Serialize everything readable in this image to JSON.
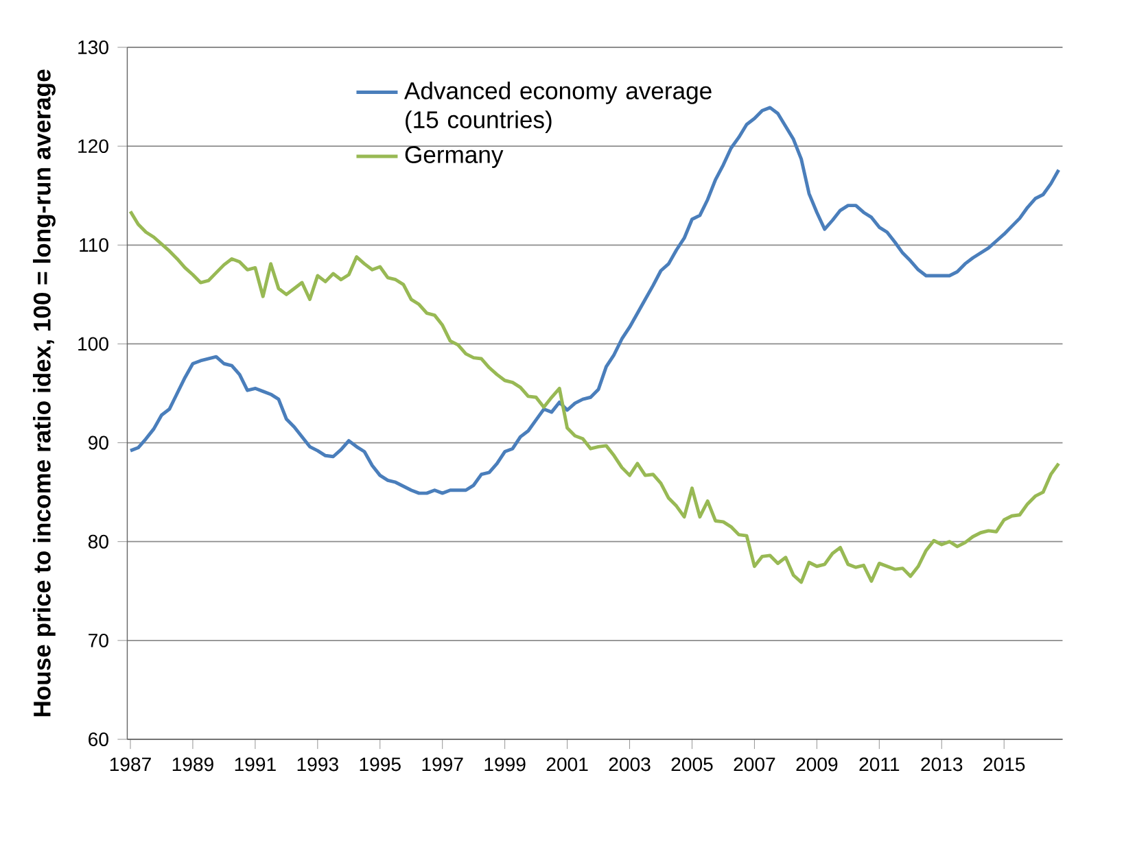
{
  "chart_data": {
    "type": "line",
    "ylabel": "House price to income ratio idex, 100 = long-run average",
    "categories": [
      "1987",
      null,
      null,
      null,
      null,
      null,
      null,
      null,
      "1989",
      null,
      null,
      null,
      null,
      null,
      null,
      null,
      "1991",
      null,
      null,
      null,
      null,
      null,
      null,
      null,
      "1993",
      null,
      null,
      null,
      null,
      null,
      null,
      null,
      "1995",
      null,
      null,
      null,
      null,
      null,
      null,
      null,
      "1997",
      null,
      null,
      null,
      null,
      null,
      null,
      null,
      "1999",
      null,
      null,
      null,
      null,
      null,
      null,
      null,
      "2001",
      null,
      null,
      null,
      null,
      null,
      null,
      null,
      "2003",
      null,
      null,
      null,
      null,
      null,
      null,
      null,
      "2005",
      null,
      null,
      null,
      null,
      null,
      null,
      null,
      "2007",
      null,
      null,
      null,
      null,
      null,
      null,
      null,
      "2009",
      null,
      null,
      null,
      null,
      null,
      null,
      null,
      "2011",
      null,
      null,
      null,
      null,
      null,
      null,
      null,
      "2013",
      null,
      null,
      null,
      null,
      null,
      null,
      null,
      "2015",
      null,
      null,
      null,
      null,
      null,
      null,
      null
    ],
    "series": [
      {
        "name": "Advanced economy average (15 countries)",
        "color": "#4a7ebb",
        "values": [
          89.2,
          89.5,
          90.4,
          91.4,
          92.8,
          93.4,
          95.0,
          96.6,
          98.0,
          98.3,
          98.5,
          98.7,
          98.0,
          97.8,
          96.9,
          95.3,
          95.5,
          95.2,
          94.9,
          94.4,
          92.4,
          91.6,
          90.6,
          89.6,
          89.2,
          88.7,
          88.6,
          89.3,
          90.2,
          89.6,
          89.1,
          87.7,
          86.7,
          86.2,
          86.0,
          85.6,
          85.2,
          84.9,
          84.9,
          85.2,
          84.9,
          85.2,
          85.2,
          85.2,
          85.7,
          86.8,
          87.0,
          87.9,
          89.1,
          89.4,
          90.6,
          91.2,
          92.3,
          93.4,
          93.1,
          94.1,
          93.3,
          94.0,
          94.4,
          94.6,
          95.4,
          97.7,
          98.9,
          100.5,
          101.7,
          103.1,
          104.5,
          105.9,
          107.4,
          108.1,
          109.5,
          110.7,
          112.6,
          113.0,
          114.6,
          116.6,
          118.1,
          119.8,
          120.9,
          122.2,
          122.8,
          123.6,
          123.9,
          123.3,
          122.0,
          120.7,
          118.7,
          115.2,
          113.3,
          111.6,
          112.5,
          113.5,
          114.0,
          114.0,
          113.3,
          112.8,
          111.8,
          111.3,
          110.3,
          109.2,
          108.4,
          107.5,
          106.9,
          106.9,
          106.9,
          106.9,
          107.3,
          108.1,
          108.7,
          109.2,
          109.7,
          110.4,
          111.1,
          111.9,
          112.7,
          113.8,
          114.7,
          115.1,
          116.2,
          117.6
        ]
      },
      {
        "name": "Germany",
        "color": "#98b954",
        "values": [
          113.4,
          112.1,
          111.3,
          110.8,
          110.1,
          109.4,
          108.6,
          107.7,
          107.0,
          106.2,
          106.4,
          107.2,
          108.0,
          108.6,
          108.3,
          107.5,
          107.7,
          104.8,
          108.1,
          105.6,
          105.0,
          105.6,
          106.2,
          104.5,
          106.9,
          106.3,
          107.1,
          106.5,
          107.0,
          108.8,
          108.1,
          107.5,
          107.8,
          106.7,
          106.5,
          106.0,
          104.5,
          104.0,
          103.1,
          102.9,
          101.9,
          100.3,
          99.9,
          99.0,
          98.6,
          98.5,
          97.6,
          96.9,
          96.3,
          96.1,
          95.6,
          94.7,
          94.6,
          93.6,
          94.6,
          95.5,
          91.5,
          90.7,
          90.4,
          89.4,
          89.6,
          89.7,
          88.7,
          87.5,
          86.7,
          87.9,
          86.7,
          86.8,
          85.9,
          84.4,
          83.6,
          82.5,
          85.4,
          82.5,
          84.1,
          82.1,
          82.0,
          81.5,
          80.7,
          80.6,
          77.5,
          78.5,
          78.6,
          77.8,
          78.4,
          76.6,
          75.9,
          77.9,
          77.5,
          77.7,
          78.8,
          79.4,
          77.7,
          77.4,
          77.6,
          76.0,
          77.8,
          77.5,
          77.2,
          77.3,
          76.5,
          77.5,
          79.1,
          80.1,
          79.7,
          80.0,
          79.5,
          79.9,
          80.5,
          80.9,
          81.1,
          81.0,
          82.2,
          82.6,
          82.7,
          83.8,
          84.6,
          85.0,
          86.8,
          87.9
        ]
      }
    ],
    "ylim": [
      60,
      130
    ],
    "yticks": [
      60,
      70,
      80,
      90,
      100,
      110,
      120,
      130
    ],
    "grid": "y",
    "legend": "top"
  }
}
